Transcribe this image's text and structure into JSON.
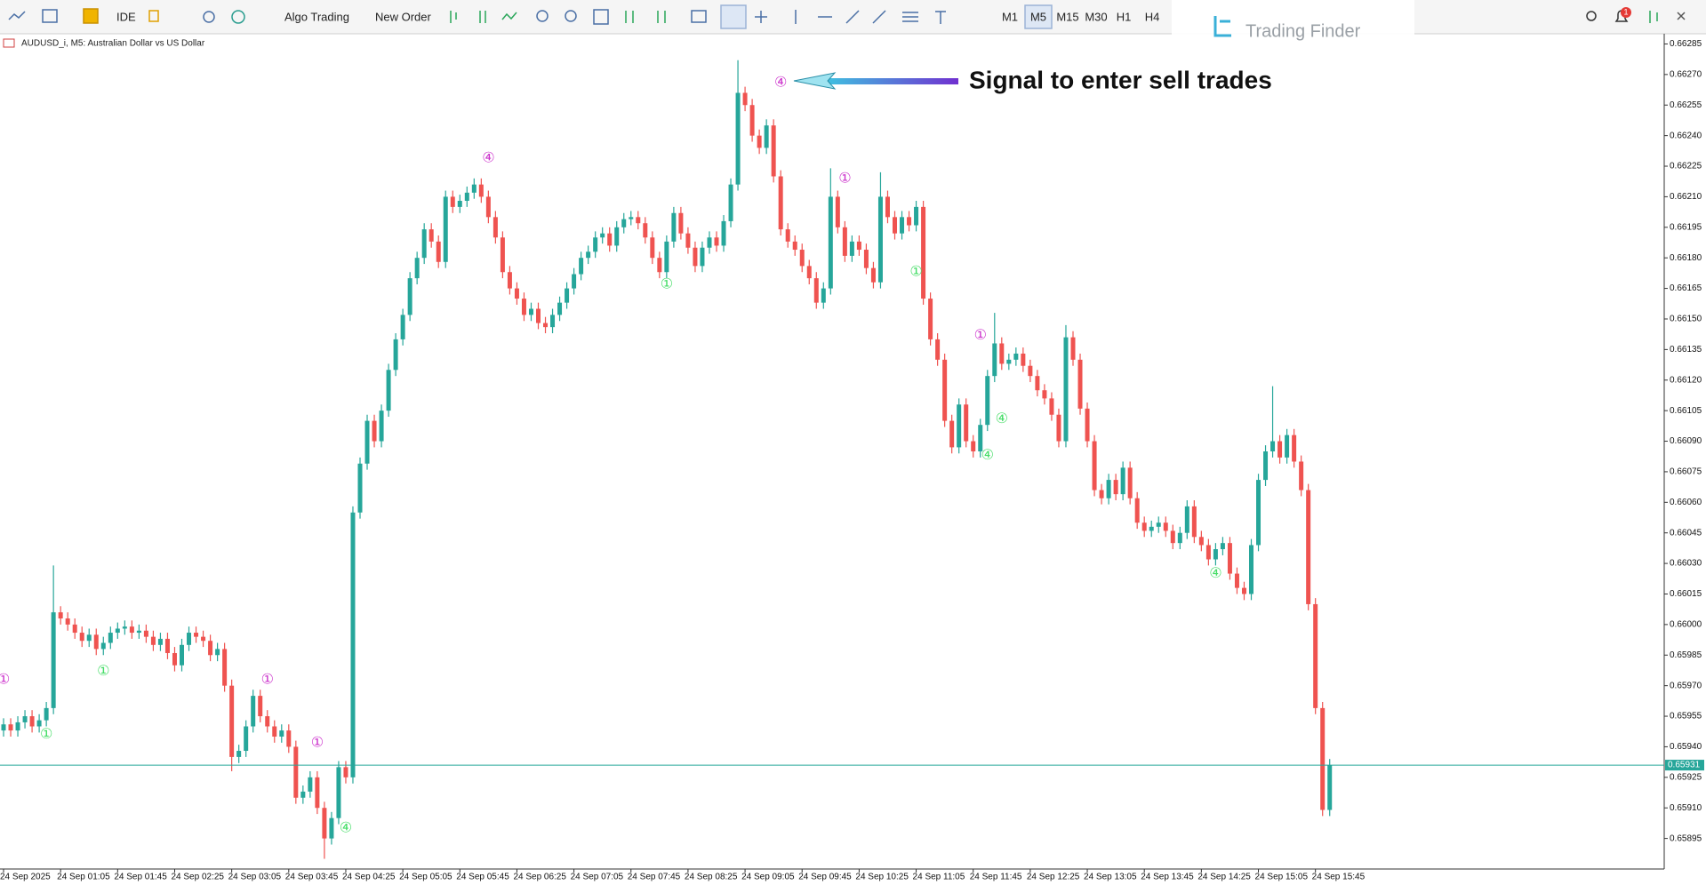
{
  "toolbar": {
    "buttons": [
      "IDE",
      "Algo Trading",
      "New Order"
    ],
    "timeframes": [
      "M1",
      "M5",
      "M15",
      "M30",
      "H1",
      "H4"
    ],
    "notification": "1",
    "logo": "Trading Finder"
  },
  "chart_data": {
    "type": "candlestick",
    "title": "AUDUSD_i, M5:  Australian Dollar vs US Dollar",
    "annotation": "Signal to enter sell trades",
    "up_color": "#26a69a",
    "down_color": "#ef5350",
    "grid": false,
    "categories": [
      "24 Sep 2025",
      null,
      null,
      null,
      null,
      null,
      null,
      null,
      "24 Sep 01:05",
      null,
      null,
      null,
      null,
      null,
      null,
      null,
      "24 Sep 01:45",
      null,
      null,
      null,
      null,
      null,
      null,
      null,
      "24 Sep 02:25",
      null,
      null,
      null,
      null,
      null,
      null,
      null,
      "24 Sep 03:05",
      null,
      null,
      null,
      null,
      null,
      null,
      null,
      "24 Sep 03:45",
      null,
      null,
      null,
      null,
      null,
      null,
      null,
      "24 Sep 04:25",
      null,
      null,
      null,
      null,
      null,
      null,
      null,
      "24 Sep 05:05",
      null,
      null,
      null,
      null,
      null,
      null,
      null,
      "24 Sep 05:45",
      null,
      null,
      null,
      null,
      null,
      null,
      null,
      "24 Sep 06:25",
      null,
      null,
      null,
      null,
      null,
      null,
      null,
      "24 Sep 07:05",
      null,
      null,
      null,
      null,
      null,
      null,
      null,
      "24 Sep 07:45",
      null,
      null,
      null,
      null,
      null,
      null,
      null,
      "24 Sep 08:25",
      null,
      null,
      null,
      null,
      null,
      null,
      null,
      "24 Sep 09:05",
      null,
      null,
      null,
      null,
      null,
      null,
      null,
      "24 Sep 09:45",
      null,
      null,
      null,
      null,
      null,
      null,
      null,
      "24 Sep 10:25",
      null,
      null,
      null,
      null,
      null,
      null,
      null,
      "24 Sep 11:05",
      null,
      null,
      null,
      null,
      null,
      null,
      null,
      "24 Sep 11:45",
      null,
      null,
      null,
      null,
      null,
      null,
      null,
      "24 Sep 12:25",
      null,
      null,
      null,
      null,
      null,
      null,
      null,
      "24 Sep 13:05",
      null,
      null,
      null,
      null,
      null,
      null,
      null,
      "24 Sep 13:45",
      null,
      null,
      null,
      null,
      null,
      null,
      null,
      "24 Sep 14:25",
      null,
      null,
      null,
      null,
      null,
      null,
      null,
      "24 Sep 15:05",
      null,
      null,
      null,
      null,
      null,
      null,
      null,
      "24 Sep 15:45",
      null,
      null
    ],
    "open": [
      0.65948,
      0.65951,
      0.65948,
      0.65952,
      0.65955,
      0.6595,
      0.65953,
      0.65959,
      0.66006,
      0.66003,
      0.66,
      0.65996,
      0.65992,
      0.65995,
      0.65988,
      0.65991,
      0.65996,
      0.65998,
      0.65999,
      0.65996,
      0.65997,
      0.65994,
      0.6599,
      0.65993,
      0.65986,
      0.6598,
      0.6599,
      0.65996,
      0.65994,
      0.65992,
      0.65985,
      0.65988,
      0.6597,
      0.65935,
      0.65938,
      0.6595,
      0.65965,
      0.65955,
      0.6595,
      0.65945,
      0.65948,
      0.6594,
      0.65915,
      0.65918,
      0.65925,
      0.6591,
      0.65895,
      0.65905,
      0.6593,
      0.65925,
      0.66055,
      0.66079,
      0.661,
      0.6609,
      0.66105,
      0.66125,
      0.6614,
      0.66152,
      0.6617,
      0.6618,
      0.66194,
      0.66188,
      0.66178,
      0.6621,
      0.66205,
      0.66208,
      0.66212,
      0.66216,
      0.6621,
      0.662,
      0.6619,
      0.66173,
      0.66165,
      0.6616,
      0.66152,
      0.66155,
      0.66148,
      0.66146,
      0.66152,
      0.66158,
      0.66165,
      0.66172,
      0.6618,
      0.66183,
      0.6619,
      0.66192,
      0.66186,
      0.66195,
      0.66199,
      0.662,
      0.66197,
      0.6619,
      0.6618,
      0.66173,
      0.66188,
      0.66202,
      0.66192,
      0.66185,
      0.66176,
      0.66185,
      0.6619,
      0.66186,
      0.66198,
      0.66216,
      0.66261,
      0.66255,
      0.6624,
      0.66234,
      0.66245,
      0.6622,
      0.66194,
      0.66188,
      0.66184,
      0.66176,
      0.6617,
      0.66158,
      0.66165,
      0.6621,
      0.66195,
      0.66181,
      0.66188,
      0.66184,
      0.66175,
      0.66168,
      0.6621,
      0.662,
      0.66192,
      0.662,
      0.66196,
      0.66205,
      0.6616,
      0.6614,
      0.6613,
      0.661,
      0.66087,
      0.66108,
      0.6609,
      0.66085,
      0.66098,
      0.66122,
      0.66138,
      0.66128,
      0.6613,
      0.66133,
      0.66127,
      0.66122,
      0.66115,
      0.66111,
      0.66103,
      0.6609,
      0.66141,
      0.6613,
      0.66106,
      0.6609,
      0.66066,
      0.66062,
      0.66071,
      0.66064,
      0.66077,
      0.66062,
      0.6605,
      0.66046,
      0.66048,
      0.6605,
      0.66046,
      0.6604,
      0.66045,
      0.66058,
      0.66043,
      0.66039,
      0.66032,
      0.66037,
      0.6604,
      0.66025,
      0.66018,
      0.66015,
      0.66039,
      0.66071,
      0.66085,
      0.6609,
      0.66082,
      0.66093,
      0.6608,
      0.66066,
      0.6601,
      0.65959,
      0.65909
    ],
    "high": [
      0.65954,
      0.65954,
      0.65955,
      0.65958,
      0.65958,
      0.65956,
      0.65962,
      0.66029,
      0.66009,
      0.66006,
      0.66003,
      0.65999,
      0.65998,
      0.65998,
      0.65994,
      0.65999,
      0.66001,
      0.66002,
      0.66002,
      0.66,
      0.66,
      0.65997,
      0.65996,
      0.65996,
      0.65989,
      0.65993,
      0.65999,
      0.65999,
      0.65997,
      0.65995,
      0.65991,
      0.65991,
      0.65973,
      0.65941,
      0.65953,
      0.65968,
      0.65968,
      0.65958,
      0.65953,
      0.65951,
      0.65951,
      0.65943,
      0.65921,
      0.65928,
      0.65928,
      0.65913,
      0.65908,
      0.65933,
      0.65933,
      0.66058,
      0.66082,
      0.66103,
      0.66103,
      0.66108,
      0.66128,
      0.66143,
      0.66155,
      0.66173,
      0.66183,
      0.66197,
      0.66197,
      0.66191,
      0.66213,
      0.66213,
      0.66211,
      0.66215,
      0.66219,
      0.66219,
      0.66213,
      0.66203,
      0.66193,
      0.66176,
      0.66168,
      0.66163,
      0.66158,
      0.66158,
      0.66151,
      0.66155,
      0.66161,
      0.66168,
      0.66175,
      0.66183,
      0.66186,
      0.66193,
      0.66195,
      0.66195,
      0.66198,
      0.66202,
      0.66203,
      0.66203,
      0.662,
      0.66193,
      0.66183,
      0.66191,
      0.66205,
      0.66205,
      0.66195,
      0.66188,
      0.66188,
      0.66193,
      0.66193,
      0.66201,
      0.66219,
      0.66277,
      0.66264,
      0.66258,
      0.66243,
      0.66248,
      0.66248,
      0.66223,
      0.66197,
      0.66191,
      0.66187,
      0.66179,
      0.66173,
      0.66168,
      0.66224,
      0.66213,
      0.66198,
      0.66191,
      0.66191,
      0.66187,
      0.66178,
      0.66222,
      0.66213,
      0.66203,
      0.66203,
      0.66203,
      0.66208,
      0.66208,
      0.66163,
      0.66143,
      0.66133,
      0.66103,
      0.66111,
      0.66111,
      0.66093,
      0.66101,
      0.66125,
      0.66153,
      0.66141,
      0.66133,
      0.66136,
      0.66136,
      0.6613,
      0.66125,
      0.66118,
      0.66114,
      0.66106,
      0.66147,
      0.66144,
      0.66133,
      0.66109,
      0.66093,
      0.66069,
      0.66074,
      0.66074,
      0.6608,
      0.6608,
      0.66065,
      0.66053,
      0.66051,
      0.66053,
      0.66053,
      0.66049,
      0.66048,
      0.66061,
      0.66061,
      0.66046,
      0.66042,
      0.6604,
      0.66043,
      0.66043,
      0.66028,
      0.66021,
      0.66042,
      0.66074,
      0.66088,
      0.66117,
      0.66093,
      0.66096,
      0.66096,
      0.66083,
      0.66069,
      0.66013,
      0.65962,
      0.65934
    ],
    "low": [
      0.65945,
      0.65945,
      0.65945,
      0.65949,
      0.65947,
      0.65947,
      0.6595,
      0.65956,
      0.66,
      0.65997,
      0.65993,
      0.65989,
      0.65989,
      0.65985,
      0.65985,
      0.65988,
      0.65993,
      0.65995,
      0.65993,
      0.65993,
      0.65991,
      0.65987,
      0.65987,
      0.65983,
      0.65977,
      0.65977,
      0.65987,
      0.65991,
      0.65989,
      0.65982,
      0.65982,
      0.65967,
      0.65928,
      0.65932,
      0.65935,
      0.65947,
      0.65952,
      0.65947,
      0.65942,
      0.65942,
      0.65937,
      0.65912,
      0.65912,
      0.65915,
      0.65907,
      0.65885,
      0.65892,
      0.65902,
      0.65922,
      0.65922,
      0.66052,
      0.66076,
      0.66087,
      0.66087,
      0.66102,
      0.66122,
      0.66137,
      0.66149,
      0.66167,
      0.66177,
      0.66185,
      0.66175,
      0.66175,
      0.66202,
      0.66202,
      0.66205,
      0.66209,
      0.66207,
      0.66197,
      0.66187,
      0.6617,
      0.66162,
      0.66157,
      0.66149,
      0.66149,
      0.66145,
      0.66143,
      0.66143,
      0.66149,
      0.66155,
      0.66162,
      0.66169,
      0.66177,
      0.6618,
      0.66187,
      0.66183,
      0.66183,
      0.66192,
      0.66196,
      0.66194,
      0.66187,
      0.66177,
      0.6617,
      0.6617,
      0.66185,
      0.66189,
      0.66182,
      0.66173,
      0.66173,
      0.66182,
      0.66183,
      0.66183,
      0.66195,
      0.66213,
      0.66252,
      0.66237,
      0.66231,
      0.66231,
      0.66217,
      0.66191,
      0.66185,
      0.66181,
      0.66173,
      0.66167,
      0.66155,
      0.66155,
      0.66162,
      0.66192,
      0.66178,
      0.66178,
      0.66181,
      0.66172,
      0.66165,
      0.66165,
      0.66197,
      0.66189,
      0.66189,
      0.66193,
      0.66193,
      0.66157,
      0.66137,
      0.66127,
      0.66097,
      0.66084,
      0.66084,
      0.66087,
      0.66082,
      0.66082,
      0.66095,
      0.66119,
      0.66125,
      0.66125,
      0.66127,
      0.66124,
      0.66119,
      0.66112,
      0.66108,
      0.661,
      0.66087,
      0.66087,
      0.66127,
      0.66103,
      0.66087,
      0.66063,
      0.66059,
      0.66059,
      0.66061,
      0.66061,
      0.66059,
      0.66047,
      0.66043,
      0.66043,
      0.66045,
      0.66043,
      0.66037,
      0.66037,
      0.66042,
      0.6604,
      0.66036,
      0.66029,
      0.66029,
      0.66034,
      0.66022,
      0.66015,
      0.66012,
      0.66012,
      0.66036,
      0.66068,
      0.66082,
      0.66079,
      0.66079,
      0.66077,
      0.66063,
      0.66007,
      0.65956,
      0.65906,
      0.65906
    ],
    "close": [
      0.65951,
      0.65948,
      0.65952,
      0.65955,
      0.6595,
      0.65953,
      0.65959,
      0.66006,
      0.66003,
      0.66,
      0.65996,
      0.65992,
      0.65995,
      0.65988,
      0.65991,
      0.65996,
      0.65998,
      0.65999,
      0.65996,
      0.65997,
      0.65994,
      0.6599,
      0.65993,
      0.65986,
      0.6598,
      0.6599,
      0.65996,
      0.65994,
      0.65992,
      0.65985,
      0.65988,
      0.6597,
      0.65935,
      0.65938,
      0.6595,
      0.65965,
      0.65955,
      0.6595,
      0.65945,
      0.65948,
      0.6594,
      0.65915,
      0.65918,
      0.65925,
      0.6591,
      0.65895,
      0.65905,
      0.6593,
      0.65925,
      0.66055,
      0.66079,
      0.661,
      0.6609,
      0.66105,
      0.66125,
      0.6614,
      0.66152,
      0.6617,
      0.6618,
      0.66194,
      0.66188,
      0.66178,
      0.6621,
      0.66205,
      0.66208,
      0.66212,
      0.66216,
      0.6621,
      0.662,
      0.6619,
      0.66173,
      0.66165,
      0.6616,
      0.66152,
      0.66155,
      0.66148,
      0.66146,
      0.66152,
      0.66158,
      0.66165,
      0.66172,
      0.6618,
      0.66183,
      0.6619,
      0.66192,
      0.66186,
      0.66195,
      0.66199,
      0.662,
      0.66197,
      0.6619,
      0.6618,
      0.66173,
      0.66188,
      0.66202,
      0.66192,
      0.66185,
      0.66176,
      0.66185,
      0.6619,
      0.66186,
      0.66198,
      0.66216,
      0.66261,
      0.66255,
      0.6624,
      0.66234,
      0.66245,
      0.6622,
      0.66194,
      0.66188,
      0.66184,
      0.66176,
      0.6617,
      0.66158,
      0.66165,
      0.6621,
      0.66195,
      0.66181,
      0.66188,
      0.66184,
      0.66175,
      0.66168,
      0.6621,
      0.662,
      0.66192,
      0.662,
      0.66196,
      0.66205,
      0.6616,
      0.6614,
      0.6613,
      0.661,
      0.66087,
      0.66108,
      0.6609,
      0.66085,
      0.66098,
      0.66122,
      0.66138,
      0.66128,
      0.6613,
      0.66133,
      0.66127,
      0.66122,
      0.66115,
      0.66111,
      0.66103,
      0.6609,
      0.66141,
      0.6613,
      0.66106,
      0.6609,
      0.66066,
      0.66062,
      0.66071,
      0.66064,
      0.66077,
      0.66062,
      0.6605,
      0.66046,
      0.66048,
      0.6605,
      0.66046,
      0.6604,
      0.66045,
      0.66058,
      0.66043,
      0.66039,
      0.66032,
      0.66037,
      0.6604,
      0.66025,
      0.66018,
      0.66015,
      0.66039,
      0.66071,
      0.66085,
      0.6609,
      0.66082,
      0.66093,
      0.6608,
      0.66066,
      0.6601,
      0.65959,
      0.65909,
      0.65931
    ],
    "signals": [
      {
        "label": "①",
        "x": 0,
        "y": 0.65973,
        "color": "#cc33cc"
      },
      {
        "label": "①",
        "x": 6,
        "y": 0.65946,
        "color": "#44dd66"
      },
      {
        "label": "①",
        "x": 14,
        "y": 0.65977,
        "color": "#44dd66"
      },
      {
        "label": "①",
        "x": 37,
        "y": 0.65973,
        "color": "#cc33cc"
      },
      {
        "label": "①",
        "x": 44,
        "y": 0.65942,
        "color": "#cc33cc"
      },
      {
        "label": "④",
        "x": 48,
        "y": 0.659,
        "color": "#44dd66"
      },
      {
        "label": "④",
        "x": 68,
        "y": 0.66229,
        "color": "#cc33cc"
      },
      {
        "label": "①",
        "x": 93,
        "y": 0.66167,
        "color": "#44dd66"
      },
      {
        "label": "④",
        "x": 109,
        "y": 0.66266,
        "color": "#cc33cc"
      },
      {
        "label": "①",
        "x": 118,
        "y": 0.66219,
        "color": "#cc33cc"
      },
      {
        "label": "①",
        "x": 128,
        "y": 0.66173,
        "color": "#44dd66"
      },
      {
        "label": "①",
        "x": 137,
        "y": 0.66142,
        "color": "#cc33cc"
      },
      {
        "label": "④",
        "x": 138,
        "y": 0.66083,
        "color": "#44dd66"
      },
      {
        "label": "④",
        "x": 140,
        "y": 0.66101,
        "color": "#44dd66"
      },
      {
        "label": "④",
        "x": 170,
        "y": 0.66025,
        "color": "#44dd66"
      }
    ],
    "current_price": 0.65931,
    "current_color": "#26a69a",
    "ylim": [
      0.6588,
      0.6629
    ],
    "yticks": [
      0.66285,
      {
        "value": 0.6627,
        "label": "0.66270"
      },
      0.66255,
      {
        "value": 0.6624,
        "label": "0.66240"
      },
      0.66225,
      {
        "value": 0.6621,
        "label": "0.66210"
      },
      0.66195,
      {
        "value": 0.6618,
        "label": "0.66180"
      },
      0.66165,
      {
        "value": 0.6615,
        "label": "0.66150"
      },
      0.66135,
      {
        "value": 0.6612,
        "label": "0.66120"
      },
      0.66105,
      {
        "value": 0.6609,
        "label": "0.66090"
      },
      0.66075,
      {
        "value": 0.6606,
        "label": "0.66060"
      },
      0.66045,
      {
        "value": 0.6603,
        "label": "0.66030"
      },
      0.66015,
      {
        "value": 0.66,
        "label": "0.66000"
      },
      0.65985,
      {
        "value": 0.6597,
        "label": "0.65970"
      },
      0.65955,
      {
        "value": 0.6594,
        "label": "0.65940"
      },
      0.65925,
      {
        "value": 0.6591,
        "label": "0.65910"
      },
      0.65895
    ]
  }
}
